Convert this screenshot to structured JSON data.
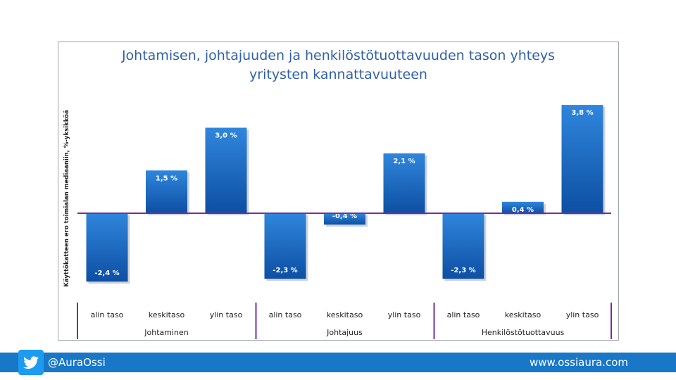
{
  "chart_data": {
    "type": "bar",
    "title_lines": [
      "Johtamisen, johtajuuden ja henkilöstötuottavuuden tason yhteys",
      "yritysten kannattavuuteen"
    ],
    "ylabel": "Käyttökatteen ero toimialan mediaaniin, %-yksikköä",
    "ylim": [
      -2.4,
      3.8
    ],
    "groups": [
      {
        "name": "Johtaminen",
        "categories": [
          "alin taso",
          "keskitaso",
          "ylin taso"
        ],
        "values": [
          -2.4,
          1.5,
          3.0
        ],
        "labels": [
          "-2,4 %",
          "1,5 %",
          "3,0 %"
        ]
      },
      {
        "name": "Johtajuus",
        "categories": [
          "alin taso",
          "keskitaso",
          "ylin taso"
        ],
        "values": [
          -2.3,
          -0.4,
          2.1
        ],
        "labels": [
          "-2,3 %",
          "-0,4 %",
          "2,1 %"
        ]
      },
      {
        "name": "Henkilöstötuottavuus",
        "categories": [
          "alin taso",
          "keskitaso",
          "ylin taso"
        ],
        "values": [
          -2.3,
          0.4,
          3.8
        ],
        "labels": [
          "-2,3 %",
          "0,4 %",
          "3,8 %"
        ]
      }
    ],
    "colors": {
      "bar": "#1565c0",
      "bar_top": "#2f86dc",
      "zero_line": "#7030a0",
      "title": "#2f5fa8"
    }
  },
  "footer": {
    "handle": "@AuraOssi",
    "site": "www.ossiaura.com",
    "icon": "twitter-bird-icon"
  }
}
